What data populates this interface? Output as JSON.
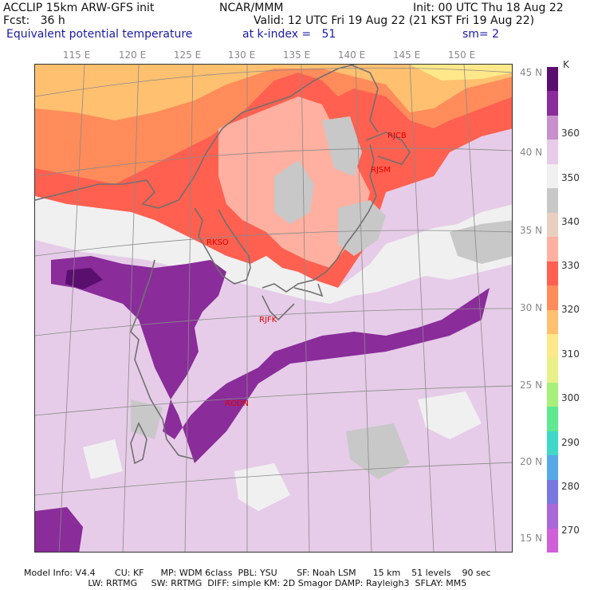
{
  "header": {
    "line1_left": "ACCLIP 15km ARW-GFS init",
    "line1_center": "NCAR/MMM",
    "line1_right": "Init: 00 UTC Thu 18 Aug 22",
    "line2_left": "Fcst:   36 h",
    "line2_right": "Valid: 12 UTC Fri 19 Aug 22 (21 KST Fri 19 Aug 22)",
    "line3_field": "Equivalent potential temperature",
    "line3_level": "at k-index =   51",
    "line3_smooth": "sm= 2"
  },
  "longitude_labels": [
    "115 E",
    "120 E",
    "125 E",
    "130 E",
    "135 E",
    "140 E",
    "145 E",
    "150 E"
  ],
  "latitude_labels": [
    "45 N",
    "40 N",
    "35 N",
    "30 N",
    "25 N",
    "20 N",
    "15 N"
  ],
  "stations": [
    "RJCB",
    "RJSM",
    "RKSO",
    "RJFK",
    "RODN"
  ],
  "colorbar": {
    "unit": "K",
    "ticks": [
      "360",
      "350",
      "340",
      "330",
      "320",
      "310",
      "300",
      "290",
      "280",
      "270"
    ],
    "colors": [
      "#5a0f6e",
      "#8a2c9a",
      "#c890cc",
      "#e6cce8",
      "#f0f0f0",
      "#c8c8c8",
      "#e8cfc0",
      "#ffb0a0",
      "#ff6050",
      "#ff8c5a",
      "#ffc070",
      "#ffe88a",
      "#e8f08a",
      "#a8f07a",
      "#60e890",
      "#40d8c8",
      "#58a8e8",
      "#7878e0",
      "#a868d8",
      "#d060d8"
    ]
  },
  "footer": {
    "line1": "Model Info: V4.4       CU: KF      MP: WDM 6class  PBL: YSU       SF: Noah LSM      15 km    51 levels    90 sec",
    "line2": "                       LW: RRTMG     SW: RRTMG  DIFF: simple KM: 2D Smagor DAMP: Rayleigh3  SFLAY: MM5"
  }
}
